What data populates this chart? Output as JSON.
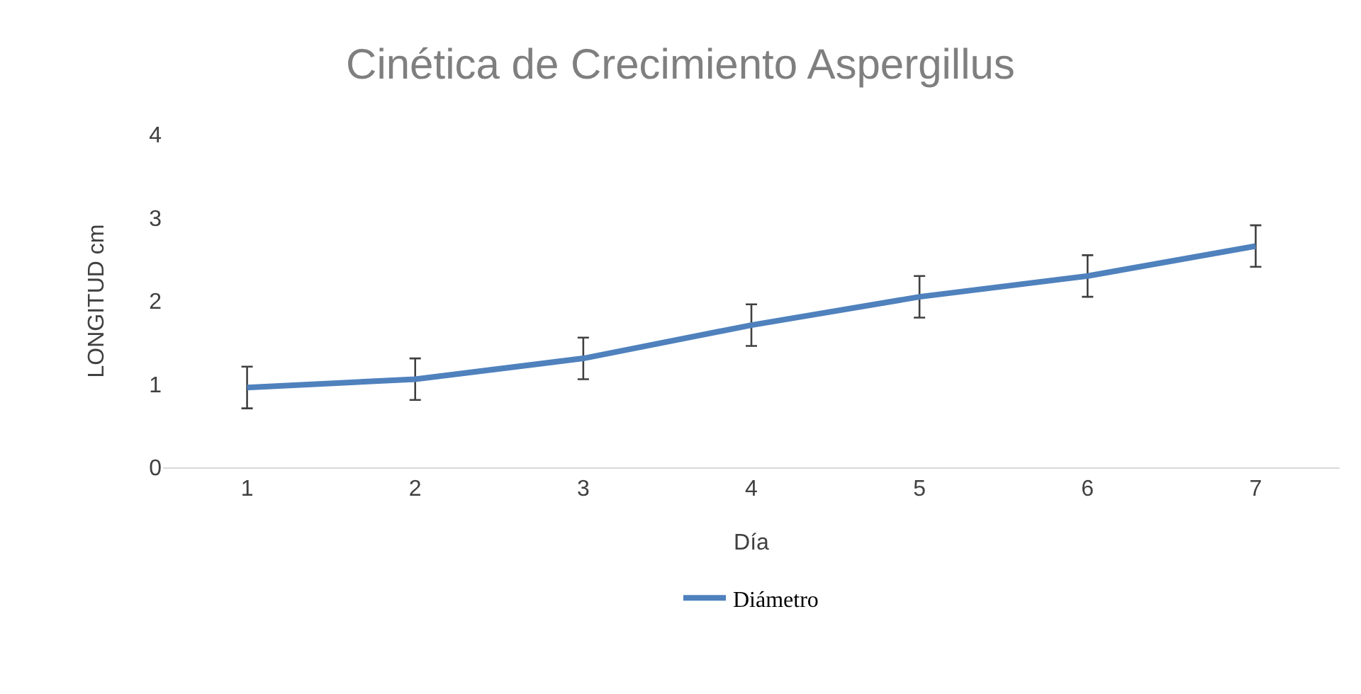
{
  "chart_data": {
    "type": "line",
    "title": "Cinética de Crecimiento Aspergillus",
    "xlabel": "Día",
    "ylabel": "LONGITUD cm",
    "categories": [
      "1",
      "2",
      "3",
      "4",
      "5",
      "6",
      "7"
    ],
    "series": [
      {
        "name": "Diámetro",
        "color": "#4f81bd",
        "values": [
          0.96,
          1.06,
          1.31,
          1.71,
          2.05,
          2.3,
          2.66
        ],
        "errors": [
          0.25,
          0.25,
          0.25,
          0.25,
          0.25,
          0.25,
          0.25
        ]
      }
    ],
    "ylim": [
      0,
      4
    ],
    "yticks": [
      0,
      1,
      2,
      3,
      4
    ],
    "grid": false,
    "legend": "bottom",
    "marker": "none",
    "line_style": "solid"
  }
}
